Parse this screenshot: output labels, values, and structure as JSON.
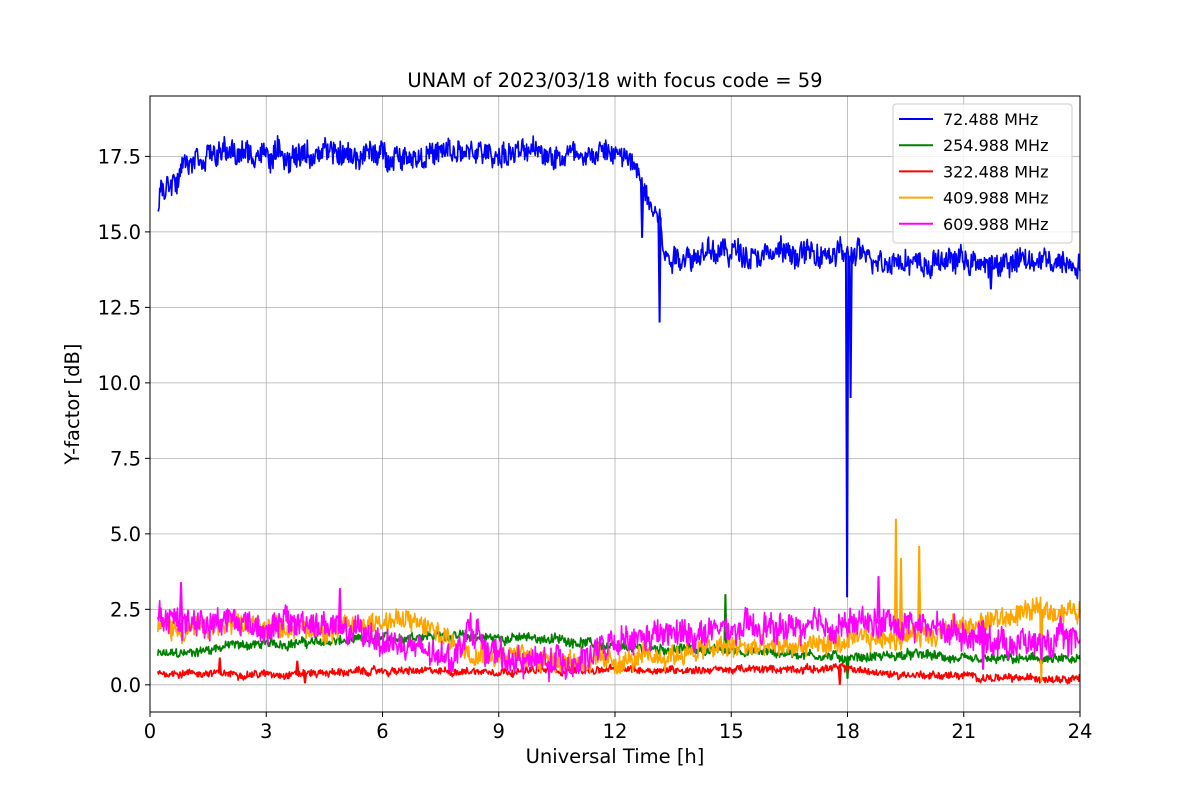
{
  "chart_data": {
    "type": "line",
    "title": "UNAM of 2023/03/18 with focus code = 59",
    "xlabel": "Universal Time [h]",
    "ylabel": "Y-factor [dB]",
    "xlim": [
      0,
      24
    ],
    "ylim": [
      -0.9,
      19.5
    ],
    "xticks": [
      0,
      3,
      6,
      9,
      12,
      15,
      18,
      21,
      24
    ],
    "yticks": [
      0.0,
      2.5,
      5.0,
      7.5,
      10.0,
      12.5,
      15.0,
      17.5
    ],
    "ytick_labels": [
      "0.0",
      "2.5",
      "5.0",
      "7.5",
      "10.0",
      "12.5",
      "15.0",
      "17.5"
    ],
    "grid": true,
    "legend_position": "top-right",
    "series": [
      {
        "name": " 72.488 MHz",
        "color": "#0000ff",
        "mean": [
          [
            0.2,
            15.9
          ],
          [
            0.3,
            16.4
          ],
          [
            0.5,
            16.6
          ],
          [
            0.7,
            16.9
          ],
          [
            0.8,
            17.3
          ],
          [
            1.0,
            17.5
          ],
          [
            1.5,
            17.6
          ],
          [
            3,
            17.55
          ],
          [
            6,
            17.55
          ],
          [
            9,
            17.6
          ],
          [
            12,
            17.6
          ],
          [
            12.5,
            17.2
          ],
          [
            12.7,
            16.5
          ],
          [
            13.0,
            16.0
          ],
          [
            13.2,
            15.3
          ],
          [
            13.25,
            14.2
          ],
          [
            15,
            14.35
          ],
          [
            18,
            14.2
          ],
          [
            19.5,
            14.1
          ],
          [
            20,
            13.9
          ],
          [
            21,
            14.15
          ],
          [
            21.5,
            13.8
          ],
          [
            22,
            14.0
          ],
          [
            24,
            14.05
          ]
        ],
        "noise": 0.4,
        "spikes": [
          [
            12.7,
            14.8
          ],
          [
            13.15,
            12.0
          ],
          [
            17.99,
            2.9
          ],
          [
            18.08,
            9.5
          ],
          [
            21.7,
            13.1
          ]
        ]
      },
      {
        "name": "254.988 MHz",
        "color": "#008000",
        "mean": [
          [
            0.2,
            1.0
          ],
          [
            1,
            1.05
          ],
          [
            2,
            1.3
          ],
          [
            4,
            1.4
          ],
          [
            6,
            1.5
          ],
          [
            7,
            1.65
          ],
          [
            9,
            1.55
          ],
          [
            10,
            1.55
          ],
          [
            11,
            1.45
          ],
          [
            12,
            1.2
          ],
          [
            13,
            1.2
          ],
          [
            15,
            1.15
          ],
          [
            17,
            1.0
          ],
          [
            18,
            0.9
          ],
          [
            19,
            0.95
          ],
          [
            20,
            1.0
          ],
          [
            21,
            0.8
          ],
          [
            22,
            0.85
          ],
          [
            23,
            0.85
          ],
          [
            24,
            0.8
          ]
        ],
        "noise": 0.15,
        "spikes": [
          [
            14.85,
            3.0
          ],
          [
            18.0,
            0.2
          ]
        ]
      },
      {
        "name": "322.488 MHz",
        "color": "#ff0000",
        "mean": [
          [
            0.2,
            0.4
          ],
          [
            3,
            0.35
          ],
          [
            6,
            0.45
          ],
          [
            9,
            0.45
          ],
          [
            12,
            0.5
          ],
          [
            15,
            0.5
          ],
          [
            18,
            0.55
          ],
          [
            19,
            0.35
          ],
          [
            21,
            0.3
          ],
          [
            22,
            0.2
          ],
          [
            24,
            0.25
          ]
        ],
        "noise": 0.12,
        "spikes": [
          [
            1.8,
            0.9
          ],
          [
            3.8,
            0.8
          ],
          [
            4.0,
            0.05
          ],
          [
            17.8,
            0.0
          ]
        ]
      },
      {
        "name": "409.988 MHz",
        "color": "#ffa500",
        "mean": [
          [
            0.2,
            1.9
          ],
          [
            1,
            1.85
          ],
          [
            3,
            2.0
          ],
          [
            5,
            1.8
          ],
          [
            6,
            2.2
          ],
          [
            7,
            2.0
          ],
          [
            8,
            1.3
          ],
          [
            9,
            1.0
          ],
          [
            10,
            0.9
          ],
          [
            11,
            0.8
          ],
          [
            12,
            0.75
          ],
          [
            13,
            0.9
          ],
          [
            14,
            1.1
          ],
          [
            15,
            1.25
          ],
          [
            16,
            1.2
          ],
          [
            17,
            1.3
          ],
          [
            18,
            1.4
          ],
          [
            19,
            1.6
          ],
          [
            20,
            1.7
          ],
          [
            21,
            1.9
          ],
          [
            22,
            2.2
          ],
          [
            23,
            2.5
          ],
          [
            24,
            2.4
          ]
        ],
        "noise": 0.35,
        "spikes": [
          [
            19.25,
            5.5
          ],
          [
            19.38,
            4.2
          ],
          [
            19.85,
            4.6
          ],
          [
            23.0,
            0.1
          ]
        ]
      },
      {
        "name": "609.988 MHz",
        "color": "#ff00ff",
        "mean": [
          [
            0.2,
            2.2
          ],
          [
            1,
            2.1
          ],
          [
            2,
            2.2
          ],
          [
            3,
            1.9
          ],
          [
            4,
            2.1
          ],
          [
            5,
            1.8
          ],
          [
            6,
            1.5
          ],
          [
            7,
            1.1
          ],
          [
            7.5,
            0.8
          ],
          [
            8,
            1.2
          ],
          [
            8.2,
            2.0
          ],
          [
            9,
            0.9
          ],
          [
            10,
            0.75
          ],
          [
            11,
            0.8
          ],
          [
            12,
            1.3
          ],
          [
            13,
            1.6
          ],
          [
            14,
            1.7
          ],
          [
            15,
            1.8
          ],
          [
            16,
            1.85
          ],
          [
            17,
            1.9
          ],
          [
            18,
            2.0
          ],
          [
            19,
            2.05
          ],
          [
            20,
            1.95
          ],
          [
            21,
            1.75
          ],
          [
            22,
            1.45
          ],
          [
            23,
            1.35
          ],
          [
            24,
            1.55
          ]
        ],
        "noise": 0.45,
        "spikes": [
          [
            0.8,
            3.4
          ],
          [
            4.9,
            3.2
          ],
          [
            18.8,
            3.6
          ],
          [
            21.5,
            0.5
          ]
        ]
      }
    ]
  }
}
